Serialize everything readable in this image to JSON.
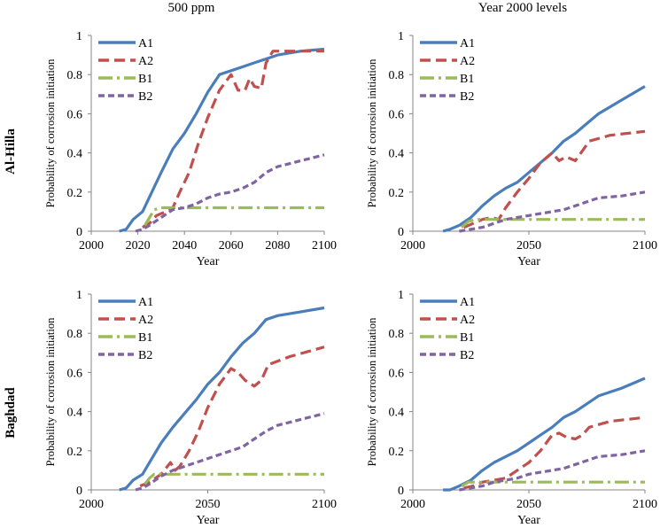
{
  "column_titles": [
    "500 ppm",
    "Year 2000 levels"
  ],
  "row_titles": [
    "Al-Hilla",
    "Baghdad"
  ],
  "colors": {
    "A1": "#4a7ebb",
    "A2": "#c0504d",
    "B1": "#9bbb59",
    "B2": "#8064a2"
  },
  "chart_data": [
    {
      "type": "line",
      "xlabel": "Year",
      "ylabel": "Probability of corrosion initiation",
      "xlim": [
        2000,
        2100
      ],
      "ylim": [
        0,
        1
      ],
      "xticks": [
        "2000",
        "2020",
        "2040",
        "2060",
        "2080",
        "2100"
      ],
      "yticks": [
        "0",
        "0.2",
        "0.4",
        "0.6",
        "0.8",
        "1"
      ],
      "legend": "top-left",
      "series": [
        {
          "name": "A1",
          "x": [
            2012,
            2015,
            2018,
            2022,
            2026,
            2030,
            2035,
            2040,
            2045,
            2050,
            2055,
            2060,
            2065,
            2070,
            2075,
            2080,
            2090,
            2100
          ],
          "y": [
            0,
            0.01,
            0.06,
            0.1,
            0.2,
            0.3,
            0.42,
            0.5,
            0.6,
            0.71,
            0.8,
            0.82,
            0.84,
            0.86,
            0.88,
            0.9,
            0.92,
            0.93
          ]
        },
        {
          "name": "A2",
          "x": [
            2022,
            2025,
            2028,
            2032,
            2035,
            2038,
            2042,
            2046,
            2050,
            2055,
            2060,
            2063,
            2066,
            2068,
            2070,
            2073,
            2075,
            2078,
            2085,
            2100
          ],
          "y": [
            0.02,
            0.04,
            0.08,
            0.1,
            0.12,
            0.2,
            0.3,
            0.45,
            0.58,
            0.72,
            0.8,
            0.72,
            0.72,
            0.78,
            0.74,
            0.73,
            0.86,
            0.92,
            0.92,
            0.92
          ]
        },
        {
          "name": "B1",
          "x": [
            2023,
            2025,
            2027,
            2030,
            2040,
            2060,
            2080,
            2100
          ],
          "y": [
            0.03,
            0.07,
            0.11,
            0.12,
            0.12,
            0.12,
            0.12,
            0.12
          ]
        },
        {
          "name": "B2",
          "x": [
            2019,
            2022,
            2025,
            2030,
            2035,
            2040,
            2045,
            2050,
            2055,
            2060,
            2065,
            2070,
            2075,
            2080,
            2090,
            2100
          ],
          "y": [
            0,
            0.01,
            0.03,
            0.07,
            0.11,
            0.12,
            0.14,
            0.17,
            0.19,
            0.2,
            0.22,
            0.25,
            0.3,
            0.33,
            0.36,
            0.39
          ]
        }
      ]
    },
    {
      "type": "line",
      "xlabel": "Year",
      "ylabel": "Probability of corrosion initiation",
      "xlim": [
        2000,
        2100
      ],
      "ylim": [
        0,
        1
      ],
      "xticks": [
        "2000",
        "2050",
        "2100"
      ],
      "yticks": [
        "0",
        "0.2",
        "0.4",
        "0.6",
        "0.8",
        "1"
      ],
      "legend": "top-left",
      "series": [
        {
          "name": "A1",
          "x": [
            2013,
            2016,
            2020,
            2025,
            2030,
            2035,
            2040,
            2045,
            2050,
            2055,
            2060,
            2065,
            2070,
            2075,
            2080,
            2090,
            2100
          ],
          "y": [
            0,
            0.01,
            0.03,
            0.07,
            0.13,
            0.18,
            0.22,
            0.25,
            0.3,
            0.35,
            0.4,
            0.46,
            0.5,
            0.55,
            0.6,
            0.67,
            0.74
          ]
        },
        {
          "name": "A2",
          "x": [
            2022,
            2026,
            2030,
            2034,
            2037,
            2040,
            2045,
            2050,
            2055,
            2060,
            2063,
            2066,
            2070,
            2073,
            2076,
            2085,
            2100
          ],
          "y": [
            0.02,
            0.04,
            0.06,
            0.07,
            0.06,
            0.12,
            0.2,
            0.27,
            0.35,
            0.4,
            0.36,
            0.38,
            0.36,
            0.41,
            0.46,
            0.49,
            0.51
          ]
        },
        {
          "name": "B1",
          "x": [
            2021,
            2024,
            2027,
            2035,
            2060,
            2080,
            2100
          ],
          "y": [
            0.02,
            0.05,
            0.06,
            0.06,
            0.06,
            0.06,
            0.06
          ]
        },
        {
          "name": "B2",
          "x": [
            2020,
            2025,
            2030,
            2035,
            2040,
            2045,
            2050,
            2055,
            2060,
            2065,
            2070,
            2075,
            2080,
            2090,
            2100
          ],
          "y": [
            0,
            0.01,
            0.02,
            0.04,
            0.06,
            0.07,
            0.08,
            0.09,
            0.1,
            0.11,
            0.13,
            0.15,
            0.17,
            0.18,
            0.2
          ]
        }
      ]
    },
    {
      "type": "line",
      "xlabel": "Year",
      "ylabel": "Probability of corrosion initiation",
      "xlim": [
        2000,
        2100
      ],
      "ylim": [
        0,
        1
      ],
      "xticks": [
        "2000",
        "2050",
        "2100"
      ],
      "yticks": [
        "0",
        "0.2",
        "0.4",
        "0.6",
        "0.8",
        "1"
      ],
      "legend": "top-left",
      "series": [
        {
          "name": "A1",
          "x": [
            2012,
            2015,
            2018,
            2022,
            2026,
            2030,
            2035,
            2040,
            2045,
            2050,
            2055,
            2060,
            2065,
            2070,
            2075,
            2080,
            2090,
            2100
          ],
          "y": [
            0,
            0.01,
            0.05,
            0.08,
            0.16,
            0.24,
            0.32,
            0.39,
            0.46,
            0.54,
            0.6,
            0.68,
            0.75,
            0.8,
            0.87,
            0.89,
            0.91,
            0.93
          ]
        },
        {
          "name": "A2",
          "x": [
            2021,
            2025,
            2030,
            2034,
            2036,
            2038,
            2042,
            2046,
            2050,
            2055,
            2060,
            2063,
            2066,
            2070,
            2073,
            2076,
            2085,
            2100
          ],
          "y": [
            0.02,
            0.04,
            0.08,
            0.14,
            0.1,
            0.12,
            0.2,
            0.3,
            0.42,
            0.54,
            0.62,
            0.6,
            0.56,
            0.53,
            0.56,
            0.64,
            0.68,
            0.73
          ]
        },
        {
          "name": "B1",
          "x": [
            2023,
            2025,
            2027,
            2030,
            2040,
            2060,
            2080,
            2100
          ],
          "y": [
            0.03,
            0.06,
            0.08,
            0.08,
            0.08,
            0.08,
            0.08,
            0.08
          ]
        },
        {
          "name": "B2",
          "x": [
            2019,
            2022,
            2025,
            2030,
            2035,
            2040,
            2045,
            2050,
            2055,
            2060,
            2065,
            2070,
            2075,
            2080,
            2090,
            2100
          ],
          "y": [
            0,
            0.01,
            0.03,
            0.07,
            0.1,
            0.12,
            0.14,
            0.16,
            0.18,
            0.2,
            0.22,
            0.26,
            0.3,
            0.33,
            0.36,
            0.39
          ]
        }
      ]
    },
    {
      "type": "line",
      "xlabel": "Year",
      "ylabel": "Probability of corrosion initiation",
      "xlim": [
        2000,
        2100
      ],
      "ylim": [
        0,
        1
      ],
      "xticks": [
        "2000",
        "2050",
        "2100"
      ],
      "yticks": [
        "0",
        "0.2",
        "0.4",
        "0.6",
        "0.8",
        "1"
      ],
      "legend": "top-left",
      "series": [
        {
          "name": "A1",
          "x": [
            2013,
            2016,
            2020,
            2025,
            2030,
            2035,
            2040,
            2045,
            2050,
            2055,
            2060,
            2065,
            2070,
            2075,
            2080,
            2090,
            2100
          ],
          "y": [
            0,
            0,
            0.02,
            0.05,
            0.1,
            0.14,
            0.17,
            0.2,
            0.24,
            0.28,
            0.32,
            0.37,
            0.4,
            0.44,
            0.48,
            0.52,
            0.57
          ]
        },
        {
          "name": "A2",
          "x": [
            2022,
            2026,
            2030,
            2035,
            2040,
            2045,
            2050,
            2055,
            2060,
            2063,
            2066,
            2070,
            2073,
            2076,
            2085,
            2100
          ],
          "y": [
            0.01,
            0.02,
            0.04,
            0.05,
            0.06,
            0.1,
            0.14,
            0.2,
            0.28,
            0.29,
            0.27,
            0.26,
            0.28,
            0.32,
            0.35,
            0.37
          ]
        },
        {
          "name": "B1",
          "x": [
            2021,
            2024,
            2027,
            2035,
            2060,
            2080,
            2100
          ],
          "y": [
            0.02,
            0.04,
            0.04,
            0.04,
            0.04,
            0.04,
            0.04
          ]
        },
        {
          "name": "B2",
          "x": [
            2020,
            2025,
            2030,
            2035,
            2040,
            2045,
            2050,
            2055,
            2060,
            2065,
            2070,
            2075,
            2080,
            2090,
            2100
          ],
          "y": [
            0,
            0.01,
            0.02,
            0.04,
            0.05,
            0.06,
            0.08,
            0.09,
            0.1,
            0.11,
            0.13,
            0.15,
            0.17,
            0.18,
            0.2
          ]
        }
      ]
    }
  ]
}
